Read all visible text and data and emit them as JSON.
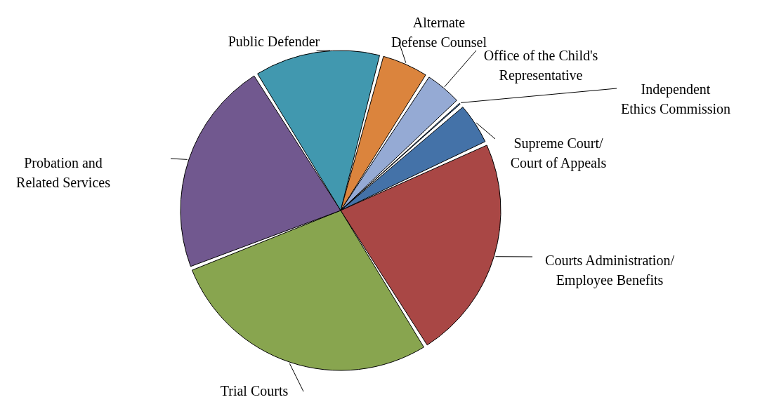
{
  "chart_data": {
    "type": "pie",
    "categories": [
      "Supreme Court/ Court of Appeals",
      "Courts Administration/ Employee Benefits",
      "Trial Courts",
      "Probation and Related Services",
      "Public Defender",
      "Alternate Defense Counsel",
      "Office of the Child's Representative",
      "Independent Ethics Commission"
    ],
    "values": [
      4.5,
      23,
      28,
      22,
      13,
      5,
      4,
      0.5
    ],
    "colors": [
      "#4472a8",
      "#a94745",
      "#88a54f",
      "#71588f",
      "#4198af",
      "#db843d",
      "#95aad4",
      "#4a7ebb"
    ]
  }
}
